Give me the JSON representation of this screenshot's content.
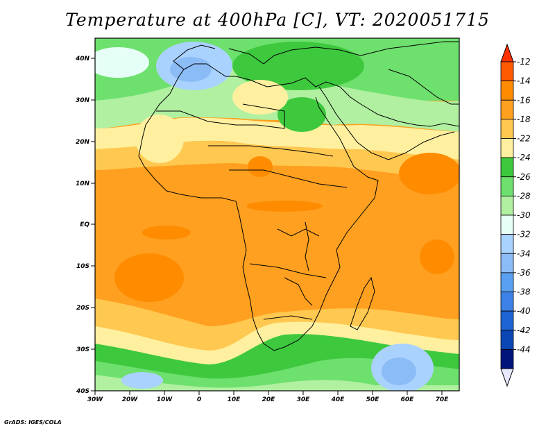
{
  "title": "Temperature at 400hPa [C], VT: 2020051715",
  "credit": "GrADS: IGES/COLA",
  "lat_labels": [
    "40N",
    "30N",
    "20N",
    "10N",
    "EQ",
    "10S",
    "20S",
    "30S",
    "40S"
  ],
  "lon_labels": [
    "30W",
    "20W",
    "10W",
    "0",
    "10E",
    "20E",
    "30E",
    "40E",
    "50E",
    "60E",
    "70E"
  ],
  "colorbar": {
    "labels": [
      "-12",
      "-14",
      "-16",
      "-18",
      "-22",
      "-24",
      "-26",
      "-28",
      "-30",
      "-32",
      "-34",
      "-36",
      "-38",
      "-40",
      "-42",
      "-44"
    ],
    "colors": [
      "#ff5a00",
      "#ff8c00",
      "#ffa020",
      "#ffc850",
      "#fff0a0",
      "#3ec83e",
      "#6ee06e",
      "#b0f0a0",
      "#e6fff6",
      "#aad2ff",
      "#8cbcf6",
      "#5aa0f0",
      "#3c82e6",
      "#1e64d2",
      "#0a46b4",
      "#00147a"
    ],
    "top_arrow_color": "#ff3000",
    "bottom_arrow_color": "#e8e8ff"
  }
}
